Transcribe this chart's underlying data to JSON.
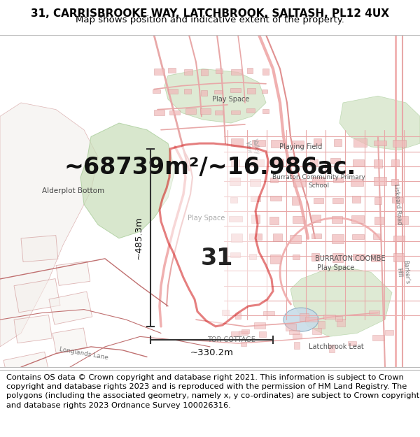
{
  "title_line1": "31, CARRISBROOKE WAY, LATCHBROOK, SALTASH, PL12 4UX",
  "title_line2": "Map shows position and indicative extent of the property.",
  "area_text": "~68739m²/~16.986ac.",
  "label_31": "31",
  "dim_vertical": "~485.3m",
  "dim_horizontal": "~330.2m",
  "footer_text": "Contains OS data © Crown copyright and database right 2021. This information is subject to Crown copyright and database rights 2023 and is reproduced with the permission of HM Land Registry. The polygons (including the associated geometry, namely x, y co-ordinates) are subject to Crown copyright and database rights 2023 Ordnance Survey 100026316.",
  "map_bg_color": "#f9f5f2",
  "title_bg_color": "#ffffff",
  "footer_bg_color": "#ffffff",
  "polygon_color": "#cc0000",
  "dim_line_color": "#333333",
  "title_fontsize": 11,
  "subtitle_fontsize": 9.5,
  "area_fontsize": 24,
  "label_fontsize": 24,
  "dim_fontsize": 9.5,
  "footer_fontsize": 8.2
}
